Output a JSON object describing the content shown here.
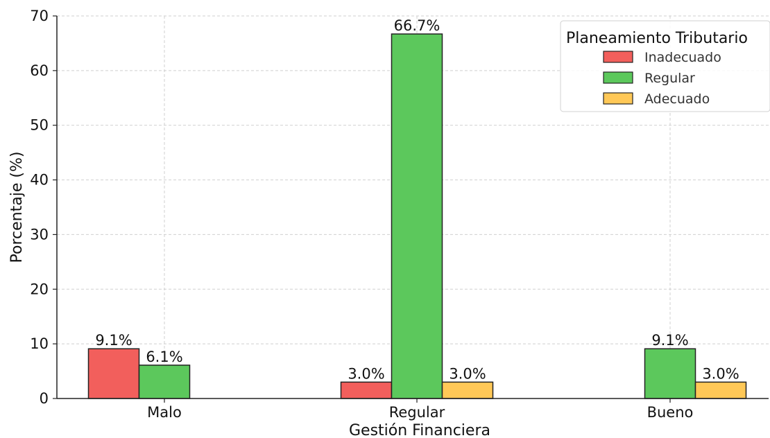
{
  "chart_data": {
    "type": "bar",
    "title": "",
    "xlabel": "Gestión Financiera",
    "ylabel": "Porcentaje (%)",
    "categories": [
      "Malo",
      "Regular",
      "Bueno"
    ],
    "ylim": [
      0,
      70
    ],
    "yticks": [
      "0",
      "10",
      "20",
      "30",
      "40",
      "50",
      "60",
      "70"
    ],
    "ytick_values": [
      0,
      10,
      20,
      30,
      40,
      50,
      60,
      70
    ],
    "grid": true,
    "legend": {
      "title": "Planeamiento Tributario",
      "placement": "top-right"
    },
    "series": [
      {
        "name": "Inadecuado",
        "color": "#f25f5c",
        "values": [
          9.1,
          3.0,
          0
        ],
        "labels": [
          "9.1%",
          "3.0%",
          ""
        ]
      },
      {
        "name": "Regular",
        "color": "#5cc85c",
        "values": [
          6.1,
          66.7,
          9.1
        ],
        "labels": [
          "6.1%",
          "66.7%",
          "9.1%"
        ]
      },
      {
        "name": "Adecuado",
        "color": "#ffc857",
        "values": [
          0,
          3.0,
          3.0
        ],
        "labels": [
          "",
          "3.0%",
          "3.0%"
        ]
      }
    ]
  }
}
